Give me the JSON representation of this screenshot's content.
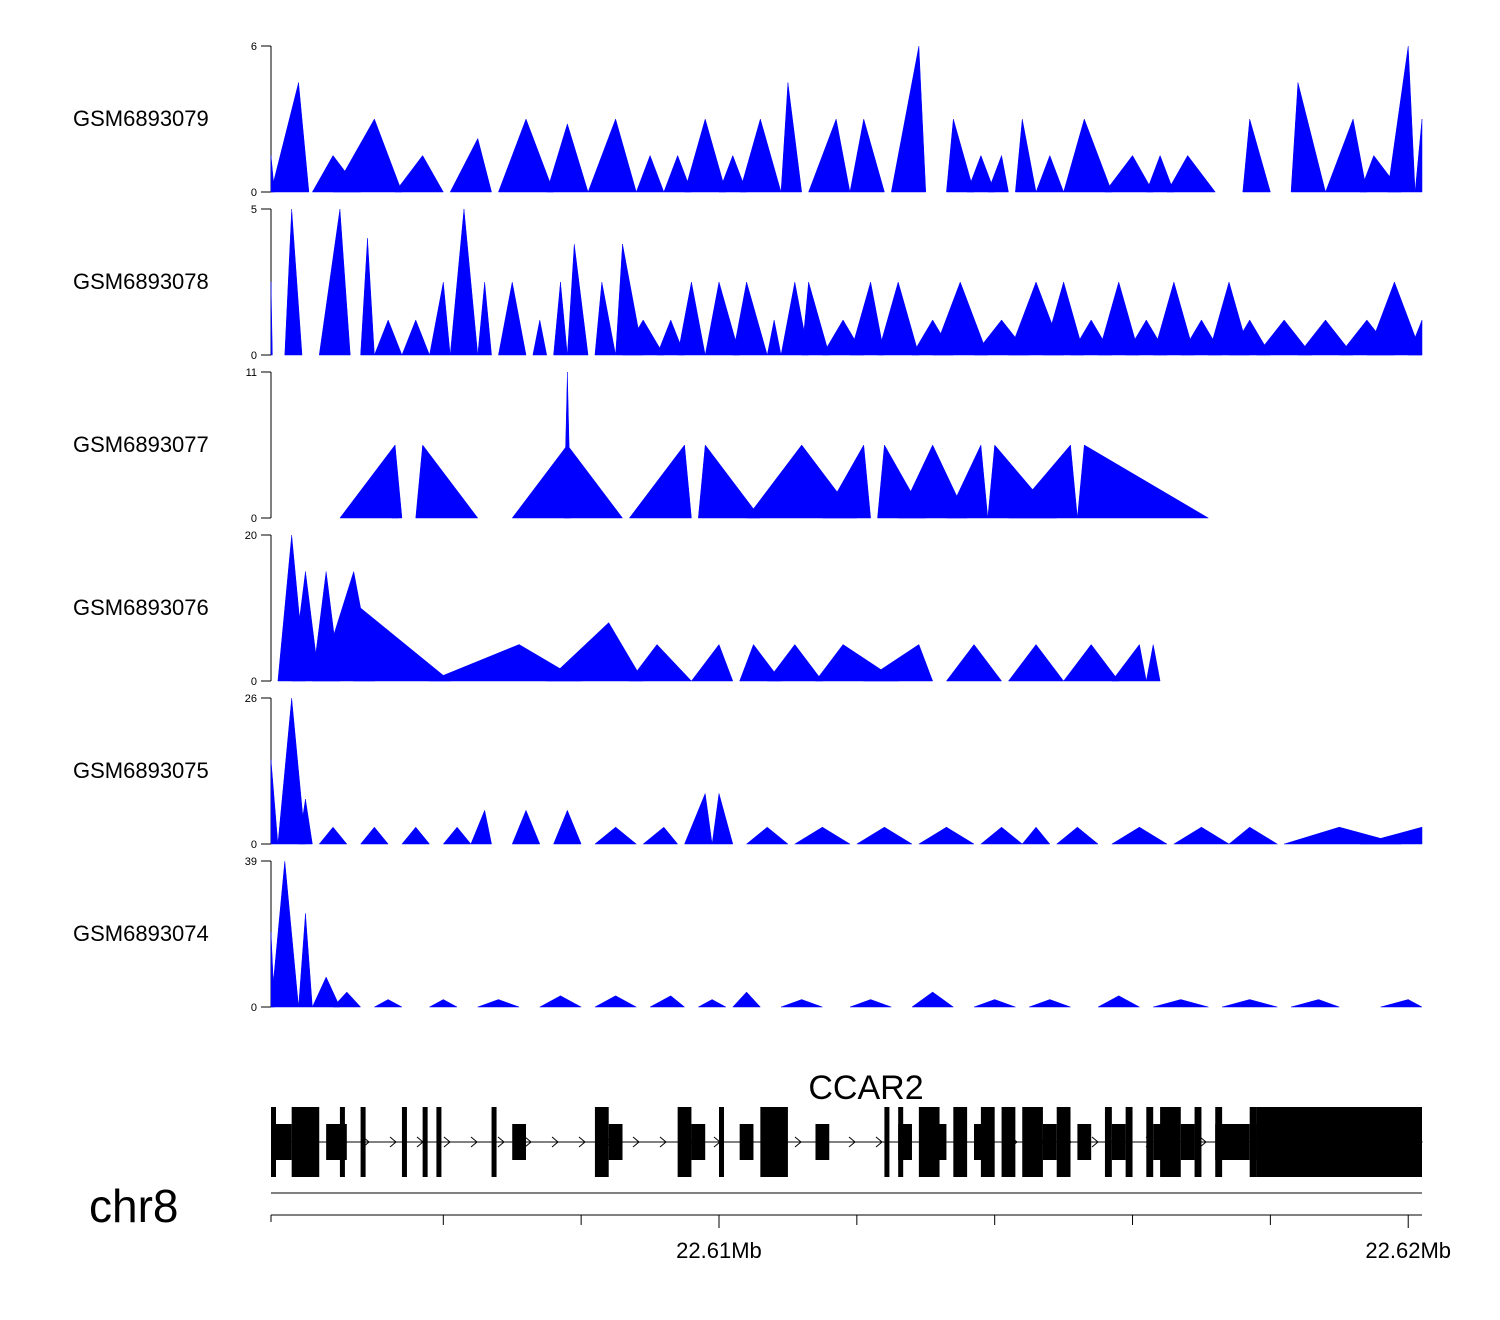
{
  "chart_data": {
    "type": "area",
    "chromosome": "chr8",
    "region_start": 22.6035,
    "region_end": 22.6202,
    "x_ticks": [
      {
        "pos": 22.61,
        "label": "22.61Mb"
      },
      {
        "pos": 22.62,
        "label": "22.62Mb"
      }
    ],
    "minor_ticks": [
      22.606,
      22.608,
      22.612,
      22.614,
      22.616,
      22.618
    ],
    "fill_color": "#0000ff",
    "tracks": [
      {
        "name": "GSM6893079",
        "ymax": 6,
        "ymin": 0,
        "peaks": [
          [
            22.6035,
            1.5,
            0.05,
            0.05
          ],
          [
            22.6039,
            4.5,
            0.4,
            0.15
          ],
          [
            22.6044,
            1.5,
            0.3,
            0.4
          ],
          [
            22.605,
            3.0,
            0.6,
            0.4
          ],
          [
            22.6057,
            1.5,
            0.4,
            0.3
          ],
          [
            22.6065,
            2.2,
            0.4,
            0.2
          ],
          [
            22.6072,
            3.0,
            0.4,
            0.4
          ],
          [
            22.6078,
            2.8,
            0.3,
            0.3
          ],
          [
            22.6085,
            3.0,
            0.4,
            0.3
          ],
          [
            22.609,
            1.5,
            0.2,
            0.2
          ],
          [
            22.6094,
            1.5,
            0.2,
            0.2
          ],
          [
            22.6098,
            3.0,
            0.3,
            0.3
          ],
          [
            22.6102,
            1.5,
            0.2,
            0.2
          ],
          [
            22.6106,
            3.0,
            0.3,
            0.3
          ],
          [
            22.611,
            4.5,
            0.1,
            0.2
          ],
          [
            22.6117,
            3.0,
            0.4,
            0.2
          ],
          [
            22.6121,
            3.0,
            0.2,
            0.3
          ],
          [
            22.6129,
            6.0,
            0.4,
            0.1
          ],
          [
            22.6134,
            3.0,
            0.1,
            0.3
          ],
          [
            22.6138,
            1.5,
            0.2,
            0.2
          ],
          [
            22.6141,
            1.5,
            0.2,
            0.1
          ],
          [
            22.6144,
            3.0,
            0.1,
            0.2
          ],
          [
            22.6148,
            1.5,
            0.2,
            0.2
          ],
          [
            22.6153,
            3.0,
            0.3,
            0.4
          ],
          [
            22.616,
            1.5,
            0.4,
            0.3
          ],
          [
            22.6164,
            1.5,
            0.2,
            0.2
          ],
          [
            22.6168,
            1.5,
            0.3,
            0.4
          ],
          [
            22.6177,
            3.0,
            0.1,
            0.3
          ],
          [
            22.6184,
            4.5,
            0.1,
            0.4
          ],
          [
            22.6192,
            3.0,
            0.4,
            0.2
          ],
          [
            22.6195,
            1.5,
            0.2,
            0.4
          ],
          [
            22.62,
            6.0,
            0.3,
            0.1
          ],
          [
            22.6202,
            3.0,
            0.1,
            0.05
          ]
        ]
      },
      {
        "name": "GSM6893078",
        "ymax": 5,
        "ymin": 0,
        "peaks": [
          [
            22.6035,
            2.5,
            0.02,
            0.02
          ],
          [
            22.6038,
            5.0,
            0.1,
            0.15
          ],
          [
            22.6045,
            5.0,
            0.3,
            0.15
          ],
          [
            22.6049,
            4.0,
            0.1,
            0.1
          ],
          [
            22.6052,
            1.2,
            0.2,
            0.2
          ],
          [
            22.6056,
            1.2,
            0.2,
            0.2
          ],
          [
            22.606,
            2.5,
            0.2,
            0.1
          ],
          [
            22.6063,
            5.0,
            0.2,
            0.2
          ],
          [
            22.6066,
            2.5,
            0.1,
            0.1
          ],
          [
            22.607,
            2.5,
            0.2,
            0.2
          ],
          [
            22.6074,
            1.2,
            0.1,
            0.1
          ],
          [
            22.6077,
            2.5,
            0.1,
            0.1
          ],
          [
            22.6079,
            3.8,
            0.1,
            0.2
          ],
          [
            22.6083,
            2.5,
            0.1,
            0.2
          ],
          [
            22.6086,
            3.8,
            0.1,
            0.3
          ],
          [
            22.6089,
            1.2,
            0.3,
            0.3
          ],
          [
            22.6093,
            1.2,
            0.2,
            0.2
          ],
          [
            22.6096,
            2.5,
            0.2,
            0.2
          ],
          [
            22.61,
            2.5,
            0.2,
            0.3
          ],
          [
            22.6104,
            2.5,
            0.2,
            0.3
          ],
          [
            22.6108,
            1.2,
            0.1,
            0.1
          ],
          [
            22.6111,
            2.5,
            0.2,
            0.2
          ],
          [
            22.6113,
            2.5,
            0.1,
            0.3
          ],
          [
            22.6118,
            1.2,
            0.3,
            0.3
          ],
          [
            22.6122,
            2.5,
            0.3,
            0.2
          ],
          [
            22.6126,
            2.5,
            0.3,
            0.3
          ],
          [
            22.6131,
            1.2,
            0.3,
            0.3
          ],
          [
            22.6135,
            2.5,
            0.4,
            0.4
          ],
          [
            22.6141,
            1.2,
            0.4,
            0.4
          ],
          [
            22.6146,
            2.5,
            0.4,
            0.4
          ],
          [
            22.615,
            2.5,
            0.3,
            0.3
          ],
          [
            22.6154,
            1.2,
            0.3,
            0.3
          ],
          [
            22.6158,
            2.5,
            0.3,
            0.3
          ],
          [
            22.6162,
            1.2,
            0.3,
            0.3
          ],
          [
            22.6166,
            2.5,
            0.3,
            0.3
          ],
          [
            22.617,
            1.2,
            0.3,
            0.3
          ],
          [
            22.6174,
            2.5,
            0.3,
            0.3
          ],
          [
            22.6177,
            1.2,
            0.3,
            0.3
          ],
          [
            22.6182,
            1.2,
            0.4,
            0.4
          ],
          [
            22.6188,
            1.2,
            0.4,
            0.4
          ],
          [
            22.6194,
            1.2,
            0.4,
            0.4
          ],
          [
            22.6198,
            2.5,
            0.4,
            0.4
          ],
          [
            22.6202,
            1.2,
            0.2,
            0.02
          ]
        ]
      },
      {
        "name": "GSM6893077",
        "ymax": 11,
        "ymin": 0,
        "peaks": [
          [
            22.6053,
            5.5,
            0.8,
            0.1
          ],
          [
            22.6053,
            5.5,
            0.05,
            0.05
          ],
          [
            22.6057,
            5.5,
            0.1,
            0.8
          ],
          [
            22.6078,
            11.0,
            0.05,
            0.05
          ],
          [
            22.6078,
            5.5,
            0.8,
            0.8
          ],
          [
            22.6095,
            5.5,
            0.8,
            0.1
          ],
          [
            22.6098,
            5.5,
            0.1,
            0.8
          ],
          [
            22.6112,
            5.5,
            0.8,
            0.8
          ],
          [
            22.6121,
            5.5,
            0.6,
            0.1
          ],
          [
            22.6124,
            5.5,
            0.1,
            0.6
          ],
          [
            22.6131,
            5.5,
            0.5,
            0.5
          ],
          [
            22.6138,
            5.5,
            0.5,
            0.1
          ],
          [
            22.614,
            5.5,
            0.1,
            0.9
          ],
          [
            22.6151,
            5.5,
            0.9,
            0.1
          ],
          [
            22.6153,
            5.5,
            0.1,
            1.8
          ]
        ]
      },
      {
        "name": "GSM6893076",
        "ymax": 20,
        "ymin": 0,
        "peaks": [
          [
            22.6038,
            20,
            0.2,
            0.2
          ],
          [
            22.604,
            15,
            0.2,
            0.2
          ],
          [
            22.6043,
            15,
            0.2,
            0.2
          ],
          [
            22.6047,
            15,
            0.5,
            0.3
          ],
          [
            22.6048,
            10,
            0.1,
            1.3
          ],
          [
            22.6071,
            5,
            1.3,
            0.9
          ],
          [
            22.6084,
            8,
            0.9,
            0.5
          ],
          [
            22.6091,
            5,
            0.4,
            0.5
          ],
          [
            22.61,
            5,
            0.4,
            0.2
          ],
          [
            22.6105,
            5,
            0.2,
            0.4
          ],
          [
            22.6111,
            5,
            0.4,
            0.4
          ],
          [
            22.6118,
            5,
            0.4,
            0.8
          ],
          [
            22.6129,
            5,
            0.8,
            0.2
          ],
          [
            22.6137,
            5,
            0.4,
            0.4
          ],
          [
            22.6146,
            5,
            0.4,
            0.4
          ],
          [
            22.6154,
            5,
            0.4,
            0.4
          ],
          [
            22.6161,
            5,
            0.4,
            0.1
          ],
          [
            22.6163,
            5,
            0.1,
            0.1
          ]
        ]
      },
      {
        "name": "GSM6893075",
        "ymax": 26,
        "ymin": 0,
        "peaks": [
          [
            22.6035,
            15,
            0.1,
            0.1
          ],
          [
            22.6038,
            26,
            0.2,
            0.2
          ],
          [
            22.604,
            8,
            0.1,
            0.1
          ],
          [
            22.6044,
            3,
            0.2,
            0.2
          ],
          [
            22.605,
            3,
            0.2,
            0.2
          ],
          [
            22.6056,
            3,
            0.2,
            0.2
          ],
          [
            22.6062,
            3,
            0.2,
            0.2
          ],
          [
            22.6066,
            6,
            0.2,
            0.1
          ],
          [
            22.6072,
            6,
            0.2,
            0.2
          ],
          [
            22.6078,
            6,
            0.2,
            0.2
          ],
          [
            22.6085,
            3,
            0.3,
            0.3
          ],
          [
            22.6092,
            3,
            0.3,
            0.2
          ],
          [
            22.6098,
            9,
            0.3,
            0.1
          ],
          [
            22.61,
            9,
            0.1,
            0.2
          ],
          [
            22.6107,
            3,
            0.3,
            0.3
          ],
          [
            22.6115,
            3,
            0.4,
            0.4
          ],
          [
            22.6124,
            3,
            0.4,
            0.4
          ],
          [
            22.6133,
            3,
            0.4,
            0.4
          ],
          [
            22.6141,
            3,
            0.3,
            0.3
          ],
          [
            22.6146,
            3,
            0.2,
            0.2
          ],
          [
            22.6152,
            3,
            0.3,
            0.3
          ],
          [
            22.6161,
            3,
            0.4,
            0.4
          ],
          [
            22.617,
            3,
            0.4,
            0.4
          ],
          [
            22.6177,
            3,
            0.3,
            0.4
          ],
          [
            22.619,
            3,
            0.8,
            0.9
          ],
          [
            22.6202,
            3,
            0.9,
            0.01
          ]
        ]
      },
      {
        "name": "GSM6893074",
        "ymax": 39,
        "ymin": 0,
        "peaks": [
          [
            22.6035,
            20,
            0.05,
            0.05
          ],
          [
            22.6037,
            39,
            0.2,
            0.2
          ],
          [
            22.604,
            25,
            0.1,
            0.1
          ],
          [
            22.6043,
            8,
            0.2,
            0.2
          ],
          [
            22.6046,
            4,
            0.2,
            0.2
          ],
          [
            22.6052,
            2,
            0.2,
            0.2
          ],
          [
            22.606,
            2,
            0.2,
            0.2
          ],
          [
            22.6068,
            2,
            0.3,
            0.3
          ],
          [
            22.6077,
            3,
            0.3,
            0.3
          ],
          [
            22.6085,
            3,
            0.3,
            0.3
          ],
          [
            22.6093,
            3,
            0.3,
            0.2
          ],
          [
            22.6099,
            2,
            0.2,
            0.2
          ],
          [
            22.6104,
            4,
            0.2,
            0.2
          ],
          [
            22.6112,
            2,
            0.3,
            0.3
          ],
          [
            22.6122,
            2,
            0.3,
            0.3
          ],
          [
            22.6131,
            4,
            0.3,
            0.3
          ],
          [
            22.614,
            2,
            0.3,
            0.3
          ],
          [
            22.6148,
            2,
            0.3,
            0.3
          ],
          [
            22.6158,
            3,
            0.3,
            0.3
          ],
          [
            22.6167,
            2,
            0.4,
            0.4
          ],
          [
            22.6177,
            2,
            0.4,
            0.4
          ],
          [
            22.6187,
            2,
            0.4,
            0.3
          ],
          [
            22.62,
            2,
            0.4,
            0.2
          ]
        ]
      }
    ],
    "gene": {
      "name": "CCAR2",
      "strand": "+",
      "exons_tall": [
        [
          22.6035,
          22.60356
        ],
        [
          22.6038,
          22.6042
        ],
        [
          22.6045,
          22.60456
        ],
        [
          22.6048,
          22.60486
        ],
        [
          22.6054,
          22.60546
        ],
        [
          22.6057,
          22.60576
        ],
        [
          22.6059,
          22.60596
        ],
        [
          22.6067,
          22.60676
        ],
        [
          22.6082,
          22.6084
        ],
        [
          22.6094,
          22.6096
        ],
        [
          22.61,
          22.61005
        ],
        [
          22.6106,
          22.611
        ],
        [
          22.6124,
          22.61245
        ],
        [
          22.6126,
          22.61265
        ],
        [
          22.6129,
          22.6132
        ],
        [
          22.6134,
          22.6136
        ],
        [
          22.6138,
          22.614
        ],
        [
          22.6141,
          22.6143
        ],
        [
          22.6144,
          22.6147
        ],
        [
          22.6149,
          22.6151
        ],
        [
          22.6156,
          22.6157
        ],
        [
          22.6159,
          22.616
        ],
        [
          22.6162,
          22.6163
        ],
        [
          22.6164,
          22.6167
        ],
        [
          22.6169,
          22.617
        ],
        [
          22.6172,
          22.6173
        ],
        [
          22.6177,
          22.6178
        ],
        [
          22.6178,
          22.6202
        ]
      ],
      "exons_short": [
        [
          22.6035,
          22.6038
        ],
        [
          22.6043,
          22.6046
        ],
        [
          22.607,
          22.6072
        ],
        [
          22.6084,
          22.6086
        ],
        [
          22.6096,
          22.6098
        ],
        [
          22.6103,
          22.6105
        ],
        [
          22.6114,
          22.6116
        ],
        [
          22.6126,
          22.6128
        ],
        [
          22.6131,
          22.6133
        ],
        [
          22.6137,
          22.6139
        ],
        [
          22.6147,
          22.6149
        ],
        [
          22.6152,
          22.6154
        ],
        [
          22.6157,
          22.6159
        ],
        [
          22.6163,
          22.6165
        ],
        [
          22.6167,
          22.6169
        ],
        [
          22.6172,
          22.6177
        ]
      ]
    }
  }
}
